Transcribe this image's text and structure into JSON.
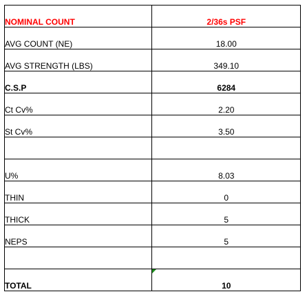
{
  "sheet": {
    "header": {
      "label": "NOMINAL COUNT",
      "value": "2/36s PSF",
      "color": "#ff0000"
    },
    "rows": [
      {
        "label": "AVG COUNT (NE)",
        "value": "18.00"
      },
      {
        "label": "AVG STRENGTH (LBS)",
        "value": "349.10"
      },
      {
        "label": "C.S.P",
        "value": "6284"
      },
      {
        "label": "Ct Cv%",
        "value": "2.20"
      },
      {
        "label": "St Cv%",
        "value": "3.50"
      },
      {
        "label": "",
        "value": ""
      },
      {
        "label": "U%",
        "value": "8.03"
      },
      {
        "label": "THIN",
        "value": "0"
      },
      {
        "label": "THICK",
        "value": "5"
      },
      {
        "label": "NEPS",
        "value": "5"
      },
      {
        "label": "",
        "value": ""
      },
      {
        "label": "TOTAL",
        "value": "10"
      }
    ]
  }
}
